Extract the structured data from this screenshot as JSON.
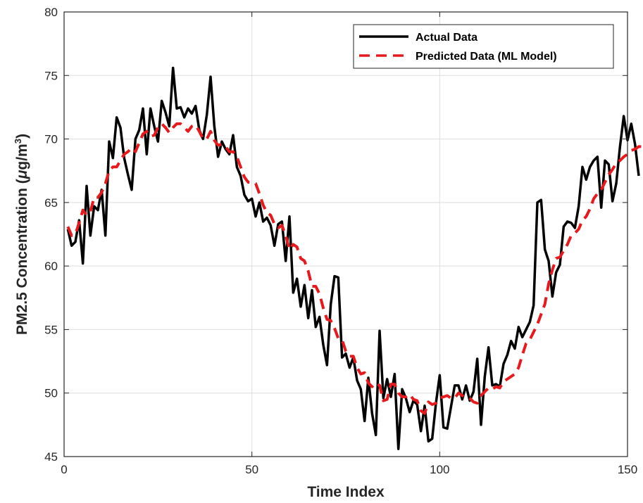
{
  "chart_data": {
    "type": "line",
    "xlabel": "Time Index",
    "ylabel": {
      "prefix": "PM2.5 Concentration (",
      "mu": "μ",
      "unit": "g/m",
      "exp": "3",
      "suffix": ")"
    },
    "xlim": [
      0,
      150
    ],
    "ylim": [
      45,
      80
    ],
    "xticks": [
      0,
      50,
      100,
      150
    ],
    "yticks": [
      45,
      50,
      55,
      60,
      65,
      70,
      75,
      80
    ],
    "grid": true,
    "legend_position": "top-right",
    "series": [
      {
        "name": "Actual Data",
        "color": "#000000",
        "style": "solid",
        "values": [
          62.9,
          61.6,
          61.9,
          63.6,
          60.2,
          66.3,
          62.4,
          64.7,
          64.4,
          66.0,
          62.4,
          69.8,
          68.5,
          71.7,
          70.9,
          68.5,
          67.2,
          66.0,
          70.0,
          70.7,
          72.4,
          68.8,
          72.4,
          71.0,
          69.8,
          73.0,
          72.1,
          71.0,
          75.6,
          72.4,
          72.5,
          71.7,
          72.4,
          72.0,
          72.6,
          70.7,
          70.0,
          71.9,
          74.9,
          71.0,
          68.6,
          69.8,
          69.2,
          68.8,
          70.3,
          67.8,
          67.1,
          65.6,
          65.1,
          65.3,
          63.9,
          65.0,
          63.5,
          63.8,
          63.2,
          61.6,
          63.3,
          63.5,
          60.4,
          63.9,
          57.9,
          59.0,
          56.8,
          58.5,
          55.9,
          58.1,
          55.2,
          56.0,
          53.8,
          52.2,
          57.0,
          59.2,
          59.1,
          52.8,
          53.1,
          52.0,
          52.8,
          51.0,
          50.3,
          47.8,
          51.2,
          48.4,
          46.7,
          54.9,
          49.6,
          51.1,
          49.7,
          51.5,
          45.6,
          50.3,
          49.6,
          48.5,
          49.4,
          49.1,
          47.0,
          49.0,
          46.2,
          46.4,
          49.2,
          51.4,
          47.3,
          47.2,
          48.9,
          50.6,
          50.6,
          49.5,
          50.6,
          49.4,
          50.1,
          52.7,
          47.5,
          51.3,
          53.6,
          50.6,
          50.7,
          50.5,
          52.3,
          53.0,
          54.1,
          53.5,
          55.2,
          54.4,
          55.0,
          55.6,
          56.9,
          65.0,
          65.2,
          61.3,
          60.4,
          57.6,
          59.5,
          60.1,
          63.1,
          63.5,
          63.4,
          63.0,
          64.7,
          67.8,
          66.8,
          67.8,
          68.3,
          68.6,
          64.6,
          68.3,
          68.0,
          65.1,
          66.5,
          69.4,
          71.8,
          69.9,
          71.2,
          69.6,
          67.1
        ]
      },
      {
        "name": "Predicted Data (ML Model)",
        "color": "#e8191c",
        "style": "dashed",
        "values": [
          63.1,
          62.4,
          62.5,
          63.4,
          64.4,
          64.0,
          64.3,
          65.4,
          65.4,
          65.8,
          66.5,
          67.5,
          67.8,
          67.8,
          68.3,
          68.8,
          69.0,
          69.3,
          69.0,
          69.7,
          70.4,
          70.6,
          70.2,
          70.3,
          70.9,
          71.2,
          70.9,
          70.5,
          70.9,
          71.2,
          71.2,
          70.9,
          70.6,
          71.0,
          71.1,
          70.6,
          70.0,
          70.0,
          70.6,
          69.9,
          69.5,
          69.6,
          69.4,
          69.0,
          69.0,
          68.6,
          67.8,
          67.0,
          66.6,
          66.6,
          66.5,
          65.7,
          64.8,
          64.2,
          64.0,
          63.3,
          63.0,
          63.2,
          62.4,
          61.3,
          61.7,
          61.5,
          60.6,
          60.4,
          59.6,
          58.4,
          58.4,
          57.8,
          56.7,
          55.8,
          55.7,
          55.1,
          54.3,
          54.2,
          53.3,
          52.9,
          52.9,
          52.0,
          51.5,
          51.6,
          50.8,
          50.5,
          50.8,
          50.6,
          49.4,
          49.5,
          50.7,
          50.7,
          50.0,
          49.7,
          49.7,
          49.9,
          49.5,
          49.4,
          48.6,
          48.4,
          49.3,
          49.1,
          49.2,
          49.6,
          49.7,
          49.8,
          49.6,
          49.6,
          50.0,
          49.8,
          49.7,
          49.6,
          49.3,
          49.2,
          49.8,
          50.1,
          50.4,
          50.3,
          50.5,
          50.4,
          50.9,
          51.1,
          51.3,
          51.5,
          52.0,
          53.0,
          53.9,
          54.2,
          54.8,
          55.4,
          56.2,
          57.0,
          58.6,
          59.7,
          60.6,
          60.7,
          61.2,
          61.7,
          62.4,
          62.6,
          62.9,
          63.6,
          63.9,
          64.5,
          65.3,
          65.7,
          66.0,
          66.6,
          67.2,
          67.6,
          68.1,
          68.3,
          68.6,
          68.8,
          69.1,
          69.2,
          69.4,
          69.4,
          69.2,
          68.5,
          67.0
        ]
      }
    ]
  }
}
